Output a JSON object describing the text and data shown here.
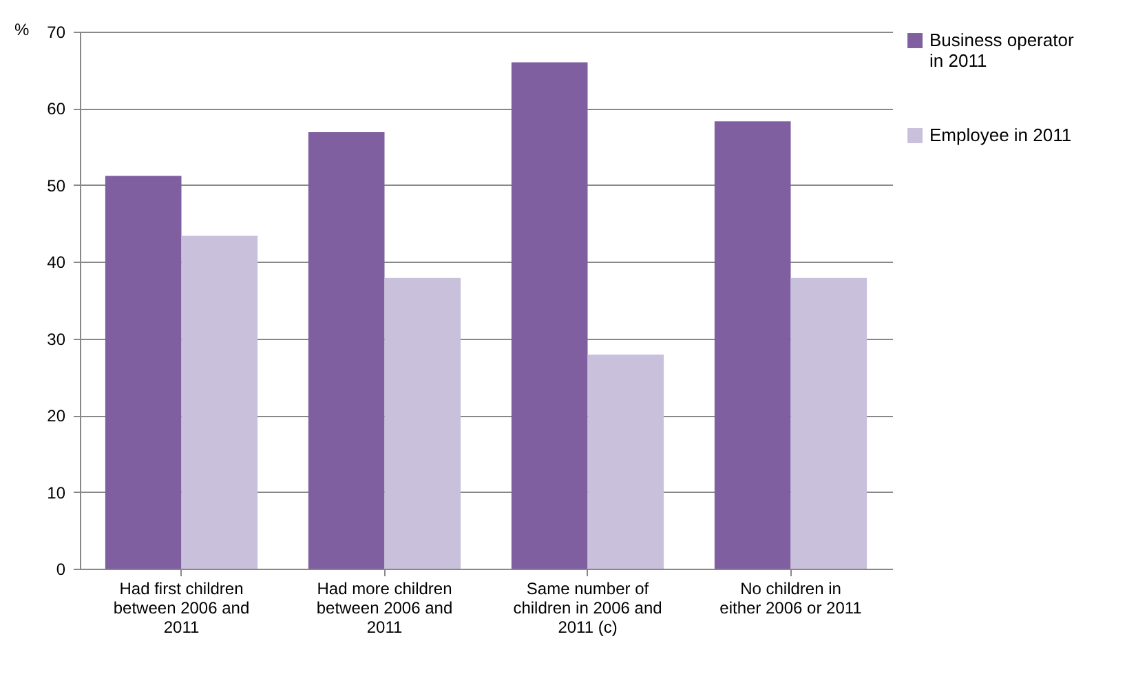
{
  "chart_data": {
    "type": "bar",
    "ylabel": "%",
    "categories": [
      "Had first children between 2006 and 2011",
      "Had more children between 2006 and 2011",
      "Same number of children in 2006 and 2011 (c)",
      "No children in either 2006 or 2011"
    ],
    "series": [
      {
        "name": "Business operator in 2011",
        "color": "#7f5fa0",
        "values": [
          51.2,
          56.9,
          66.0,
          58.3
        ]
      },
      {
        "name": "Employee in 2011",
        "color": "#c9c0dc",
        "values": [
          43.4,
          37.9,
          27.9,
          37.9
        ]
      }
    ],
    "ylim": [
      0,
      70
    ],
    "yticks": [
      0,
      10,
      20,
      30,
      40,
      50,
      60,
      70
    ],
    "grid": "y",
    "legend": "right"
  }
}
